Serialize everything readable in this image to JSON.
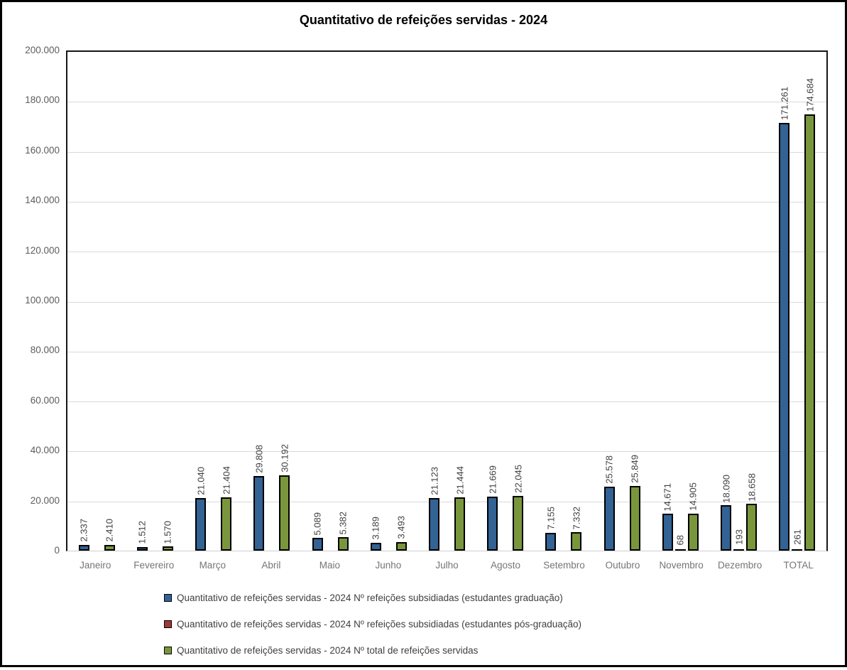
{
  "chart_data": {
    "type": "bar",
    "title": "Quantitativo de refeições servidas - 2024",
    "categories": [
      "Janeiro",
      "Fevereiro",
      "Março",
      "Abril",
      "Maio",
      "Junho",
      "Julho",
      "Agosto",
      "Setembro",
      "Outubro",
      "Novembro",
      "Dezembro",
      "TOTAL"
    ],
    "series": [
      {
        "name": "Quantitativo de refeições servidas - 2024 Nº refeições subsidiadas (estudantes graduação)",
        "color": "#336294",
        "values": [
          2337,
          1512,
          21040,
          29808,
          5089,
          3189,
          21123,
          21669,
          7155,
          25578,
          14671,
          18090,
          171261
        ],
        "labels": [
          "2.337",
          "1.512",
          "21.040",
          "29.808",
          "5.089",
          "3.189",
          "21.123",
          "21.669",
          "7.155",
          "25.578",
          "14.671",
          "18.090",
          "171.261"
        ]
      },
      {
        "name": "Quantitativo de refeições servidas - 2024 Nº refeições subsidiadas (estudantes pós-graduação)",
        "color": "#9c3a38",
        "values": [
          0,
          0,
          0,
          0,
          0,
          0,
          0,
          0,
          0,
          0,
          68,
          193,
          261
        ],
        "labels": [
          "",
          "",
          "",
          "",
          "",
          "",
          "",
          "",
          "",
          "",
          "68",
          "193",
          "261"
        ]
      },
      {
        "name": "Quantitativo de refeições servidas - 2024 Nº total de refeições servidas",
        "color": "#7a963c",
        "values": [
          2410,
          1570,
          21404,
          30192,
          5382,
          3493,
          21444,
          22045,
          7332,
          25849,
          14905,
          18658,
          174684
        ],
        "labels": [
          "2.410",
          "1.570",
          "21.404",
          "30.192",
          "5.382",
          "3.493",
          "21.444",
          "22.045",
          "7.332",
          "25.849",
          "14.905",
          "18.658",
          "174.684"
        ]
      }
    ],
    "y_ticks": [
      "200.000",
      "180.000",
      "160.000",
      "140.000",
      "120.000",
      "100.000",
      "80.000",
      "60.000",
      "40.000",
      "20.000",
      "0"
    ],
    "ylim": [
      0,
      200000
    ],
    "grid": true,
    "legend_position": "bottom-left",
    "colors": {
      "grid": "#d9d9d9",
      "plot_border": "#161616",
      "bar_border": "#000000",
      "label_text": "#404040",
      "axis_text": "#757575"
    }
  }
}
